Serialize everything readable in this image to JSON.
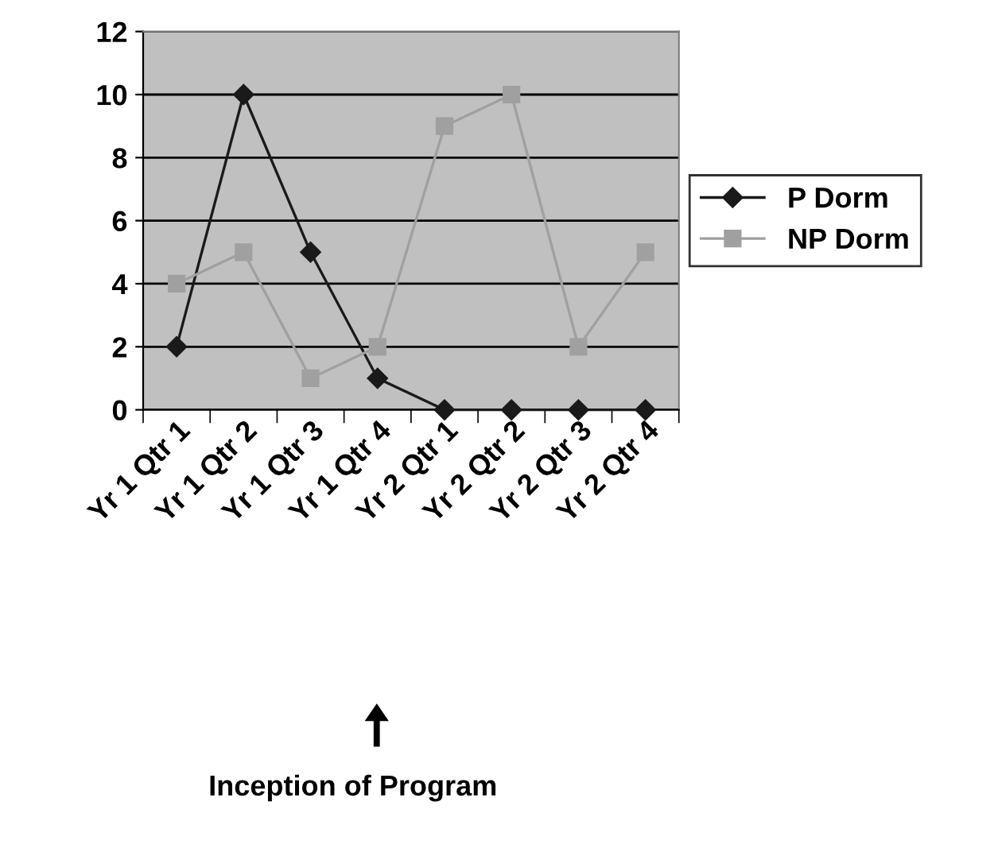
{
  "chart_data": {
    "type": "line",
    "categories": [
      "Yr 1 Qtr 1",
      "Yr 1 Qtr 2",
      "Yr 1 Qtr 3",
      "Yr 1 Qtr 4",
      "Yr 2 Qtr 1",
      "Yr 2 Qtr 2",
      "Yr 2 Qtr 3",
      "Yr 2 Qtr 4"
    ],
    "series": [
      {
        "name": "P Dorm",
        "color": "#1a1a1a",
        "marker": "diamond",
        "values": [
          2,
          10,
          5,
          1,
          0,
          0,
          0,
          0
        ]
      },
      {
        "name": "NP Dorm",
        "color": "#a0a0a0",
        "marker": "square",
        "values": [
          4,
          5,
          1,
          2,
          9,
          10,
          2,
          5
        ]
      }
    ],
    "ylim": [
      0,
      12
    ],
    "yticks": [
      0,
      2,
      4,
      6,
      8,
      10,
      12
    ],
    "grid": "y",
    "legend": "right",
    "line_style": "solid",
    "annotations": [
      "Inception of Program"
    ]
  }
}
